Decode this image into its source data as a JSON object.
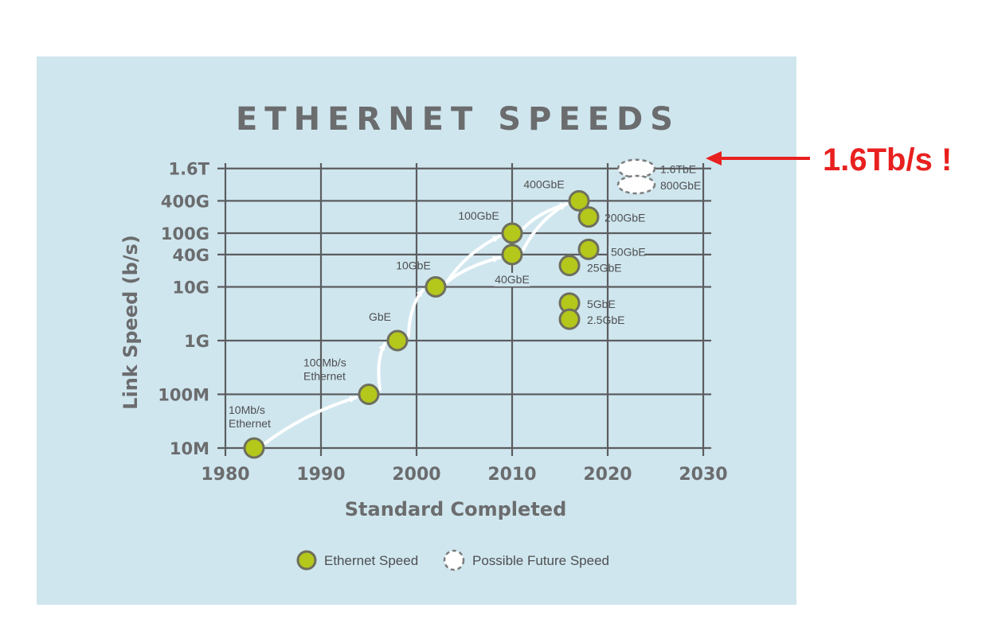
{
  "chart_data": {
    "type": "scatter",
    "title": "ETHERNET SPEEDS",
    "xlabel": "Standard Completed",
    "ylabel": "Link Speed (b/s)",
    "xlim": [
      1980,
      2030
    ],
    "x_ticks": [
      "1980",
      "1990",
      "2000",
      "2010",
      "2020",
      "2030"
    ],
    "y_ticks": [
      "10M",
      "100M",
      "1G",
      "10G",
      "40G",
      "100G",
      "400G",
      "1.6T"
    ],
    "y_scale": "log",
    "grid": true,
    "legend_position": "bottom",
    "legend": [
      {
        "label": "Ethernet Speed",
        "style": "solid"
      },
      {
        "label": "Possible Future Speed",
        "style": "dashed"
      }
    ],
    "colors": {
      "point": "#b4c71b",
      "point_outline": "#6e6f5e",
      "future_outline": "#7c7d7f",
      "background": "#cfe6ee",
      "callout": "#e8201f"
    },
    "series": [
      {
        "name": "Ethernet Speed",
        "points": [
          {
            "label": "10Mb/s\nEthernet",
            "year": 1983,
            "speed": "10M"
          },
          {
            "label": "100Mb/s\nEthernet",
            "year": 1995,
            "speed": "100M"
          },
          {
            "label": "GbE",
            "year": 1998,
            "speed": "1G"
          },
          {
            "label": "10GbE",
            "year": 2002,
            "speed": "10G"
          },
          {
            "label": "100GbE",
            "year": 2010,
            "speed": "100G"
          },
          {
            "label": "40GbE",
            "year": 2010,
            "speed": "40G"
          },
          {
            "label": "400GbE",
            "year": 2017,
            "speed": "400G"
          },
          {
            "label": "200GbE",
            "year": 2018,
            "speed": "200G"
          },
          {
            "label": "50GbE",
            "year": 2018,
            "speed": "50G"
          },
          {
            "label": "25GbE",
            "year": 2016,
            "speed": "25G"
          },
          {
            "label": "5GbE",
            "year": 2016,
            "speed": "5G"
          },
          {
            "label": "2.5GbE",
            "year": 2016,
            "speed": "2.5G"
          }
        ]
      },
      {
        "name": "Possible Future Speed",
        "points": [
          {
            "label": "1.6TbE",
            "year": 2023,
            "speed": "1.6T"
          },
          {
            "label": "800GbE",
            "year": 2023,
            "speed": "800G"
          }
        ]
      }
    ]
  },
  "annotation": {
    "text": "1.6Tb/s !"
  }
}
